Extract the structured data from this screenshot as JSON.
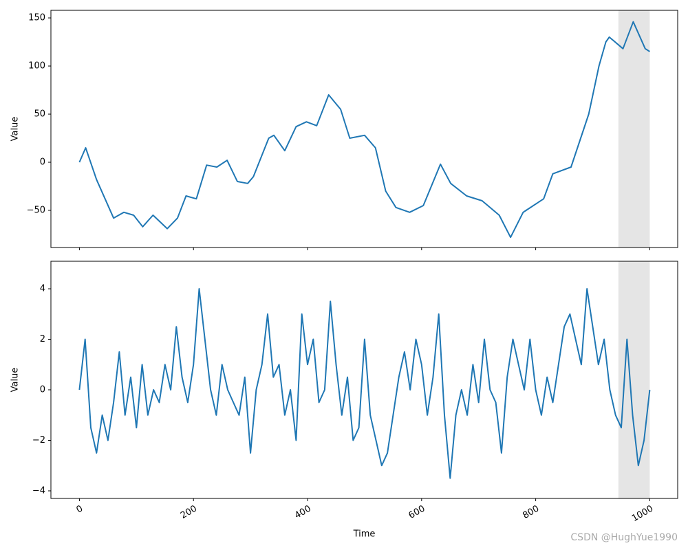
{
  "chart_data": [
    {
      "type": "line",
      "ylabel": "Value",
      "x": [
        0,
        11,
        30,
        45,
        60,
        78,
        95,
        111,
        129,
        154,
        172,
        187,
        205,
        223,
        241,
        259,
        277,
        295,
        305,
        332,
        341,
        360,
        380,
        398,
        416,
        437,
        458,
        474,
        500,
        519,
        537,
        555,
        579,
        603,
        633,
        651,
        679,
        706,
        736,
        756,
        778,
        814,
        830,
        862,
        893,
        911,
        923,
        929,
        953,
        971,
        992,
        1000
      ],
      "series": [
        {
          "name": "Value",
          "color": "#1f77b4",
          "values": [
            0,
            15,
            -18,
            -38,
            -58,
            -52,
            -55,
            -67,
            -55,
            -69,
            -58,
            -35,
            -38,
            -3,
            -5,
            2,
            -20,
            -22,
            -15,
            25,
            28,
            12,
            37,
            42,
            38,
            70,
            55,
            25,
            28,
            15,
            -30,
            -47,
            -52,
            -45,
            -2,
            -22,
            -35,
            -40,
            -55,
            -78,
            -52,
            -38,
            -12,
            -5,
            50,
            100,
            125,
            130,
            118,
            146,
            118,
            115
          ]
        }
      ],
      "xlim": [
        -49.95,
        1048.95
      ],
      "xticks": [
        0,
        200,
        400,
        600,
        800,
        1000
      ],
      "show_xticklabels": false,
      "ylim": [
        -88.6,
        157.9
      ],
      "yticks": [
        {
          "value": -50,
          "label": "−50"
        },
        0,
        50,
        100,
        150
      ],
      "span": [
        945,
        1000
      ],
      "span_color": "#e5e5e5"
    },
    {
      "type": "line",
      "ylabel": "Value",
      "xlabel": "Time",
      "x": [
        0,
        10,
        20,
        30,
        40,
        50,
        60,
        70,
        80,
        90,
        100,
        110,
        120,
        130,
        140,
        150,
        160,
        170,
        180,
        190,
        200,
        210,
        220,
        230,
        240,
        250,
        260,
        270,
        280,
        290,
        300,
        310,
        320,
        330,
        340,
        350,
        360,
        370,
        380,
        390,
        400,
        410,
        420,
        430,
        440,
        450,
        460,
        470,
        480,
        490,
        500,
        510,
        520,
        530,
        540,
        550,
        560,
        570,
        580,
        590,
        600,
        610,
        620,
        630,
        640,
        650,
        660,
        670,
        680,
        690,
        700,
        710,
        720,
        730,
        740,
        750,
        760,
        770,
        780,
        790,
        800,
        810,
        820,
        830,
        840,
        850,
        860,
        870,
        880,
        890,
        900,
        910,
        920,
        930,
        940,
        950,
        960,
        970,
        980,
        990,
        1000
      ],
      "series": [
        {
          "name": "Value",
          "color": "#1f77b4",
          "values": [
            0,
            2,
            -1.5,
            -2.5,
            -1,
            -2,
            -0.5,
            1.5,
            -1,
            0.5,
            -1.5,
            1,
            -1,
            0,
            -0.5,
            1,
            0,
            2.5,
            0.5,
            -0.5,
            1,
            4,
            2,
            0,
            -1,
            1,
            0,
            -0.5,
            -1,
            0.5,
            -2.5,
            0,
            1,
            3,
            0.5,
            1,
            -1,
            0,
            -2,
            3,
            1,
            2,
            -0.5,
            0,
            3.5,
            1,
            -1,
            0.5,
            -2,
            -1.5,
            2,
            -1,
            -2,
            -3,
            -2.5,
            -1,
            0.5,
            1.5,
            0,
            2,
            1,
            -1,
            0.5,
            3,
            -1,
            -3.5,
            -1,
            0,
            -1,
            1,
            -0.5,
            2,
            0,
            -0.5,
            -2.5,
            0.5,
            2,
            1,
            0,
            2,
            0,
            -1,
            0.5,
            -0.5,
            1,
            2.5,
            3,
            2,
            1,
            4,
            2.5,
            1,
            2,
            0,
            -1,
            -1.5,
            2,
            -1,
            -3,
            -2,
            0
          ]
        }
      ],
      "xlim": [
        -49.95,
        1048.95
      ],
      "xticks": [
        0,
        200,
        400,
        600,
        800,
        1000
      ],
      "show_xticklabels": true,
      "ylim": [
        -4.3,
        5.09
      ],
      "yticks": [
        {
          "value": -4,
          "label": "−4"
        },
        {
          "value": -2,
          "label": "−2"
        },
        0,
        2,
        4
      ],
      "span": [
        945,
        1000
      ],
      "span_color": "#e5e5e5"
    }
  ],
  "watermark": "CSDN @HughYue1990"
}
